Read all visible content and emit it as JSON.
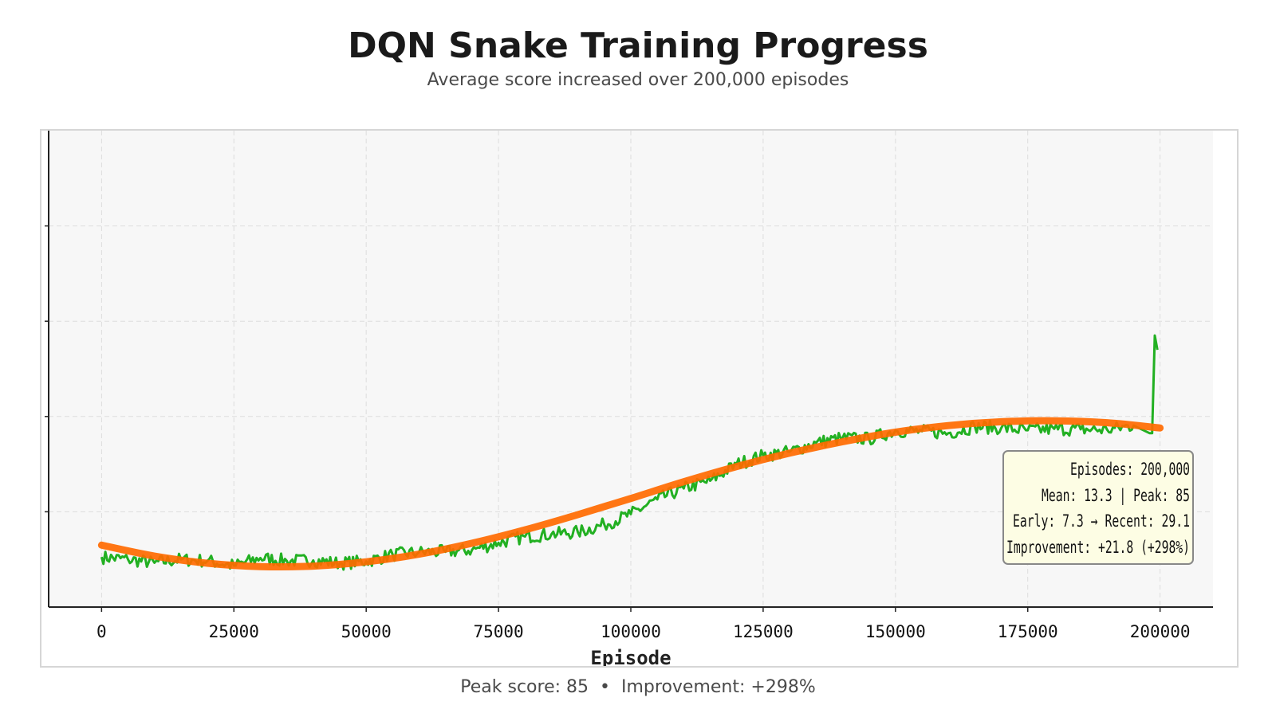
{
  "header": {
    "title": "DQN Snake Training Progress",
    "subtitle": "Average score increased over 200,000 episodes"
  },
  "stats_box": {
    "line1": "Episodes: 200,000",
    "line2": "Mean: 13.3 | Peak: 85",
    "line3": "Early: 7.3 → Recent: 29.1",
    "line4": "Improvement: +21.8 (+298%)"
  },
  "footer": {
    "peak": "Peak score: 85",
    "separator": "•",
    "improvement": "Improvement: +298%"
  },
  "chart_data": {
    "type": "line",
    "title": "",
    "xlabel": "Episode",
    "ylabel": "",
    "xlim": [
      -10000,
      210000
    ],
    "ylim": [
      0,
      100
    ],
    "x_ticks": [
      0,
      25000,
      50000,
      75000,
      100000,
      125000,
      150000,
      175000,
      200000
    ],
    "y_ticks": [
      20,
      40,
      60,
      80
    ],
    "y_tick_labels_visible": false,
    "grid": true,
    "colors": {
      "raw": "#22b022",
      "trend": "#ff6a00",
      "background": "#f7f7f7",
      "stats_box": "#fdfde4"
    },
    "series": [
      {
        "name": "",
        "role": "raw",
        "x": [
          0,
          5000,
          10000,
          15000,
          20000,
          25000,
          30000,
          35000,
          40000,
          45000,
          50000,
          55000,
          60000,
          65000,
          70000,
          75000,
          80000,
          85000,
          90000,
          95000,
          100000,
          105000,
          110000,
          115000,
          120000,
          125000,
          130000,
          135000,
          140000,
          145000,
          150000,
          155000,
          160000,
          165000,
          170000,
          175000,
          180000,
          185000,
          190000,
          195000,
          198000,
          198500,
          199000,
          199500
        ],
        "y": [
          10.5,
          10.0,
          9.3,
          10.0,
          9.7,
          8.7,
          10.3,
          9.7,
          9.8,
          9.2,
          9.6,
          11.0,
          11.5,
          11.6,
          12.0,
          13.5,
          14.8,
          15.3,
          15.7,
          17.3,
          19.5,
          22.6,
          24.9,
          26.5,
          30.0,
          31.8,
          32.6,
          34.5,
          35.5,
          35.3,
          37.0,
          36.9,
          36.5,
          37.9,
          37.6,
          37.1,
          37.4,
          37.3,
          37.2,
          38.1,
          36.5,
          36.5,
          57.0,
          54.0
        ]
      },
      {
        "name": "",
        "role": "trend",
        "x": [
          0,
          10000,
          20000,
          30000,
          40000,
          50000,
          60000,
          70000,
          80000,
          90000,
          100000,
          110000,
          120000,
          130000,
          140000,
          150000,
          160000,
          170000,
          180000,
          190000,
          200000
        ],
        "y": [
          13.0,
          10.7,
          9.2,
          8.5,
          8.6,
          9.5,
          11.1,
          13.4,
          16.2,
          19.4,
          22.8,
          26.3,
          29.5,
          32.3,
          34.7,
          36.7,
          38.1,
          38.9,
          39.1,
          38.7,
          37.6
        ]
      }
    ],
    "annotations": [
      "Episodes: 200,000",
      "Mean: 13.3 | Peak: 85",
      "Early: 7.3 → Recent: 29.1",
      "Improvement: +21.8 (+298%)"
    ]
  }
}
